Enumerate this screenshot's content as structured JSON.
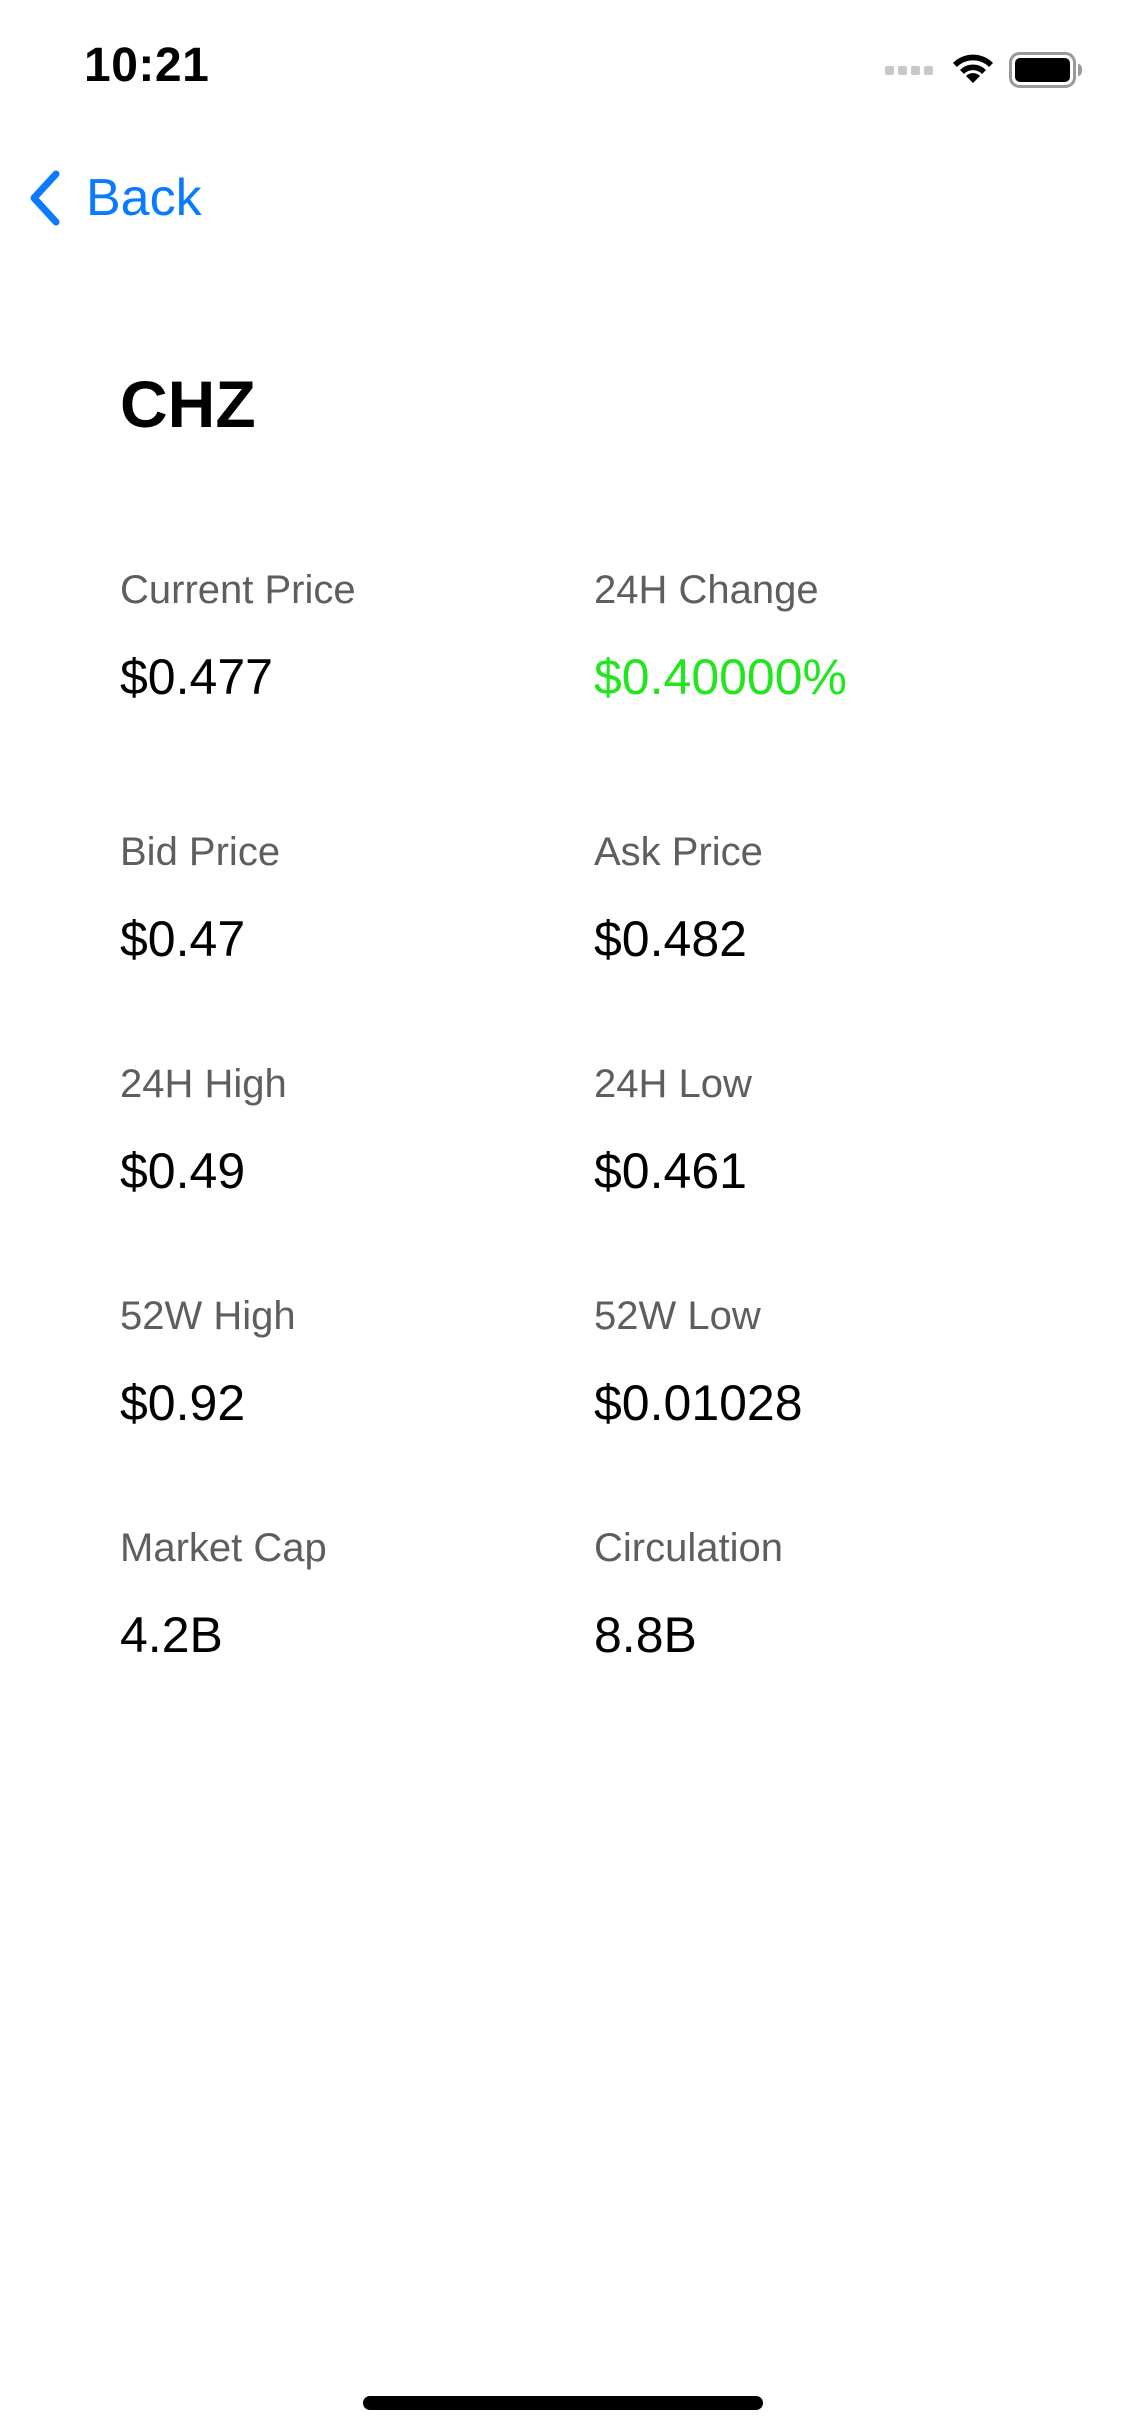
{
  "status_bar": {
    "time": "10:21"
  },
  "nav": {
    "back_label": "Back"
  },
  "title": "CHZ",
  "stats": {
    "current_price": {
      "label": "Current Price",
      "value": "$0.477"
    },
    "change_24h": {
      "label": "24H Change",
      "value": "$0.40000%"
    },
    "bid_price": {
      "label": "Bid Price",
      "value": "$0.47"
    },
    "ask_price": {
      "label": "Ask Price",
      "value": "$0.482"
    },
    "high_24h": {
      "label": "24H High",
      "value": "$0.49"
    },
    "low_24h": {
      "label": "24H Low",
      "value": "$0.461"
    },
    "high_52w": {
      "label": "52W High",
      "value": "$0.92"
    },
    "low_52w": {
      "label": "52W Low",
      "value": "$0.01028"
    },
    "market_cap": {
      "label": "Market Cap",
      "value": "4.2B"
    },
    "circulation": {
      "label": "Circulation",
      "value": "8.8B"
    }
  },
  "colors": {
    "accent": "#0a7aff",
    "positive": "#22e61d",
    "label_gray": "#5e5e5e"
  },
  "icons": {
    "back": "chevron-left-icon",
    "signal": "cellular-signal-icon",
    "wifi": "wifi-icon",
    "battery": "battery-icon"
  }
}
